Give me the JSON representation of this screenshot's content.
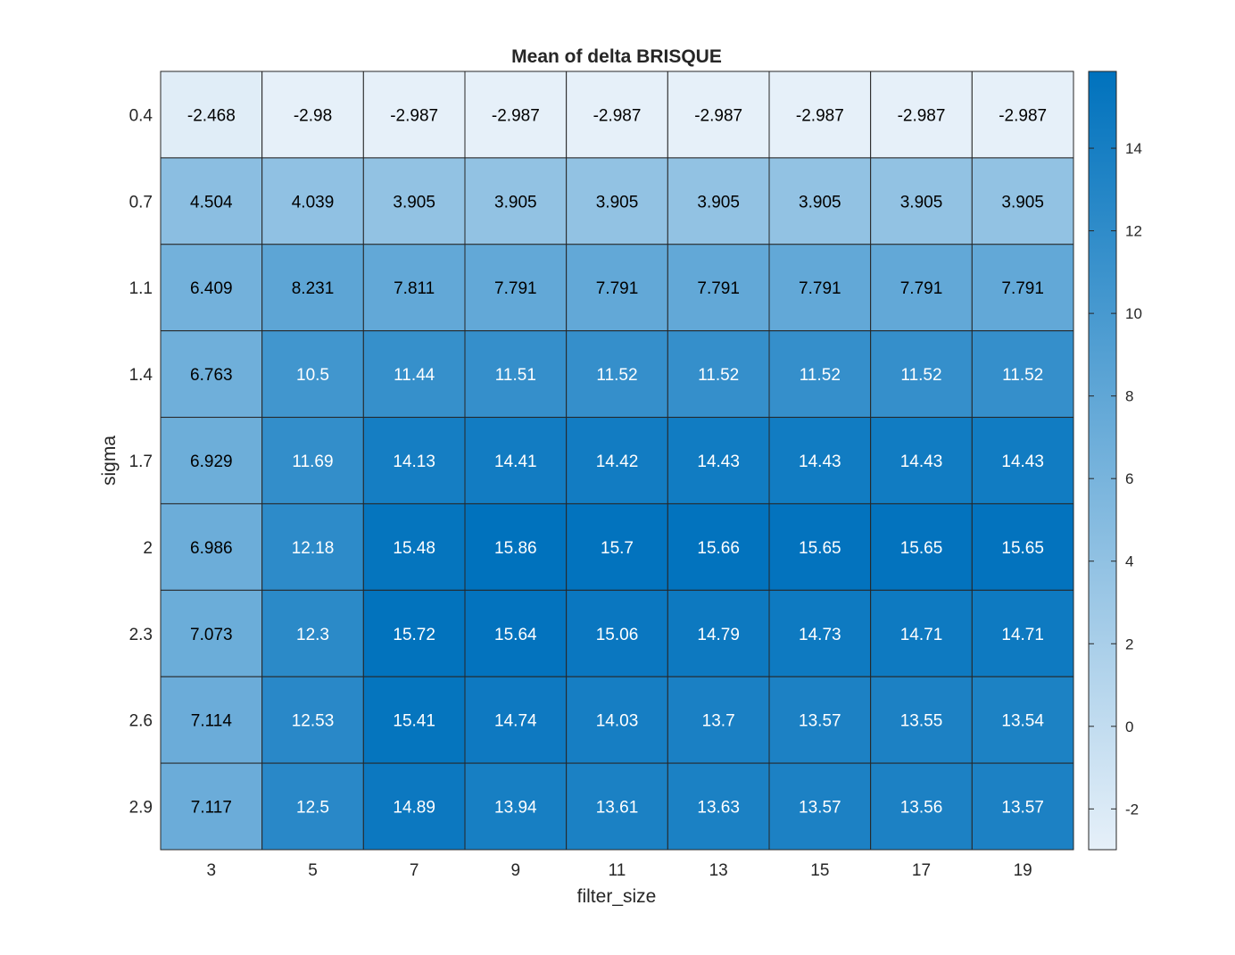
{
  "chart_data": {
    "type": "heatmap",
    "title": "Mean of delta BRISQUE",
    "xlabel": "filter_size",
    "ylabel": "sigma",
    "x_categories": [
      "3",
      "5",
      "7",
      "9",
      "11",
      "13",
      "15",
      "17",
      "19"
    ],
    "y_categories": [
      "0.4",
      "0.7",
      "1.1",
      "1.4",
      "1.7",
      "2",
      "2.3",
      "2.6",
      "2.9"
    ],
    "values": [
      [
        -2.468,
        -2.98,
        -2.987,
        -2.987,
        -2.987,
        -2.987,
        -2.987,
        -2.987,
        -2.987
      ],
      [
        4.504,
        4.039,
        3.905,
        3.905,
        3.905,
        3.905,
        3.905,
        3.905,
        3.905
      ],
      [
        6.409,
        8.231,
        7.811,
        7.791,
        7.791,
        7.791,
        7.791,
        7.791,
        7.791
      ],
      [
        6.763,
        10.5,
        11.44,
        11.51,
        11.52,
        11.52,
        11.52,
        11.52,
        11.52
      ],
      [
        6.929,
        11.69,
        14.13,
        14.41,
        14.42,
        14.43,
        14.43,
        14.43,
        14.43
      ],
      [
        6.986,
        12.18,
        15.48,
        15.86,
        15.7,
        15.66,
        15.65,
        15.65,
        15.65
      ],
      [
        7.073,
        12.3,
        15.72,
        15.64,
        15.06,
        14.79,
        14.73,
        14.71,
        14.71
      ],
      [
        7.114,
        12.53,
        15.41,
        14.74,
        14.03,
        13.7,
        13.57,
        13.55,
        13.54
      ],
      [
        7.117,
        12.5,
        14.89,
        13.94,
        13.61,
        13.63,
        13.57,
        13.56,
        13.57
      ]
    ],
    "cell_labels": [
      [
        "-2.468",
        "-2.98",
        "-2.987",
        "-2.987",
        "-2.987",
        "-2.987",
        "-2.987",
        "-2.987",
        "-2.987"
      ],
      [
        "4.504",
        "4.039",
        "3.905",
        "3.905",
        "3.905",
        "3.905",
        "3.905",
        "3.905",
        "3.905"
      ],
      [
        "6.409",
        "8.231",
        "7.811",
        "7.791",
        "7.791",
        "7.791",
        "7.791",
        "7.791",
        "7.791"
      ],
      [
        "6.763",
        "10.5",
        "11.44",
        "11.51",
        "11.52",
        "11.52",
        "11.52",
        "11.52",
        "11.52"
      ],
      [
        "6.929",
        "11.69",
        "14.13",
        "14.41",
        "14.42",
        "14.43",
        "14.43",
        "14.43",
        "14.43"
      ],
      [
        "6.986",
        "12.18",
        "15.48",
        "15.86",
        "15.7",
        "15.66",
        "15.65",
        "15.65",
        "15.65"
      ],
      [
        "7.073",
        "12.3",
        "15.72",
        "15.64",
        "15.06",
        "14.79",
        "14.73",
        "14.71",
        "14.71"
      ],
      [
        "7.114",
        "12.53",
        "15.41",
        "14.74",
        "14.03",
        "13.7",
        "13.57",
        "13.55",
        "13.54"
      ],
      [
        "7.117",
        "12.5",
        "14.89",
        "13.94",
        "13.61",
        "13.63",
        "13.57",
        "13.56",
        "13.57"
      ]
    ],
    "colorbar": {
      "range": [
        -2.987,
        15.86
      ],
      "ticks": [
        -2,
        0,
        2,
        4,
        6,
        8,
        10,
        12,
        14
      ],
      "color_low": "#e6f0f9",
      "color_high": "#0072bd"
    },
    "text_color_dark": "#000000",
    "text_color_light": "#ffffff",
    "grid": true,
    "legend": "colorbar right"
  }
}
